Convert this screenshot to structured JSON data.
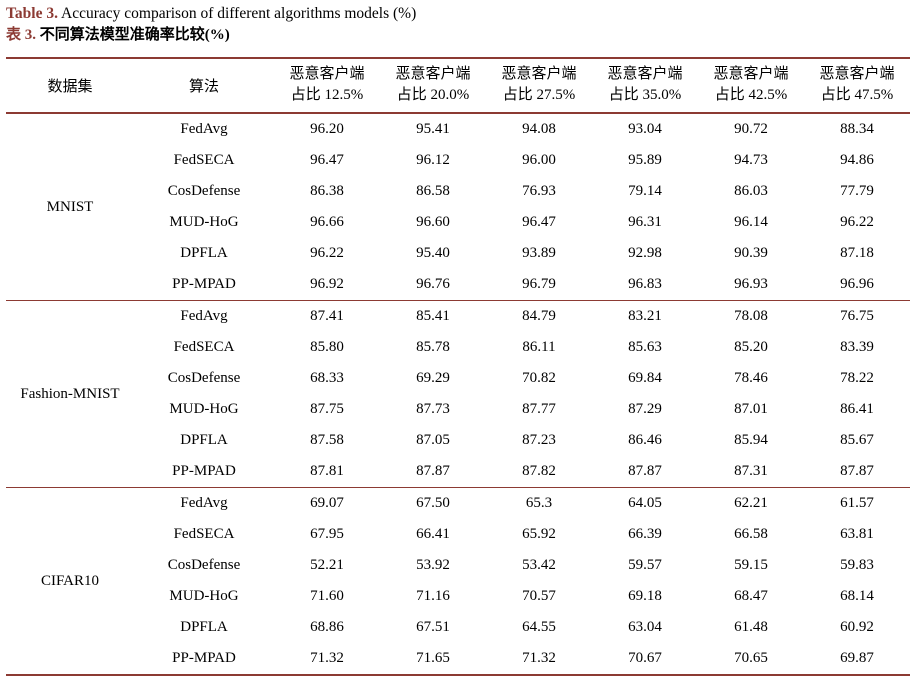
{
  "caption": {
    "label_en": "Table 3.",
    "text_en": " Accuracy comparison of different algorithms models (%)",
    "label_zh": "表 3.",
    "text_zh": " 不同算法模型准确率比较(%)"
  },
  "colors": {
    "accent": "#8c3a33",
    "rule": "#8c3a33",
    "text": "#000000"
  },
  "table": {
    "headers": {
      "dataset": "数据集",
      "algorithm": "算法",
      "ratio_columns": [
        {
          "line1": "恶意客户端",
          "line2": "占比 12.5%"
        },
        {
          "line1": "恶意客户端",
          "line2": "占比 20.0%"
        },
        {
          "line1": "恶意客户端",
          "line2": "占比 27.5%"
        },
        {
          "line1": "恶意客户端",
          "line2": "占比 35.0%"
        },
        {
          "line1": "恶意客户端",
          "line2": "占比 42.5%"
        },
        {
          "line1": "恶意客户端",
          "line2": "占比 47.5%"
        }
      ]
    },
    "groups": [
      {
        "dataset": "MNIST",
        "rows": [
          {
            "algorithm": "FedAvg",
            "values": [
              "96.20",
              "95.41",
              "94.08",
              "93.04",
              "90.72",
              "88.34"
            ]
          },
          {
            "algorithm": "FedSECA",
            "values": [
              "96.47",
              "96.12",
              "96.00",
              "95.89",
              "94.73",
              "94.86"
            ]
          },
          {
            "algorithm": "CosDefense",
            "values": [
              "86.38",
              "86.58",
              "76.93",
              "79.14",
              "86.03",
              "77.79"
            ]
          },
          {
            "algorithm": "MUD-HoG",
            "values": [
              "96.66",
              "96.60",
              "96.47",
              "96.31",
              "96.14",
              "96.22"
            ]
          },
          {
            "algorithm": "DPFLA",
            "values": [
              "96.22",
              "95.40",
              "93.89",
              "92.98",
              "90.39",
              "87.18"
            ]
          },
          {
            "algorithm": "PP-MPAD",
            "values": [
              "96.92",
              "96.76",
              "96.79",
              "96.83",
              "96.93",
              "96.96"
            ]
          }
        ]
      },
      {
        "dataset": "Fashion-MNIST",
        "rows": [
          {
            "algorithm": "FedAvg",
            "values": [
              "87.41",
              "85.41",
              "84.79",
              "83.21",
              "78.08",
              "76.75"
            ]
          },
          {
            "algorithm": "FedSECA",
            "values": [
              "85.80",
              "85.78",
              "86.11",
              "85.63",
              "85.20",
              "83.39"
            ]
          },
          {
            "algorithm": "CosDefense",
            "values": [
              "68.33",
              "69.29",
              "70.82",
              "69.84",
              "78.46",
              "78.22"
            ]
          },
          {
            "algorithm": "MUD-HoG",
            "values": [
              "87.75",
              "87.73",
              "87.77",
              "87.29",
              "87.01",
              "86.41"
            ]
          },
          {
            "algorithm": "DPFLA",
            "values": [
              "87.58",
              "87.05",
              "87.23",
              "86.46",
              "85.94",
              "85.67"
            ]
          },
          {
            "algorithm": "PP-MPAD",
            "values": [
              "87.81",
              "87.87",
              "87.82",
              "87.87",
              "87.31",
              "87.87"
            ]
          }
        ]
      },
      {
        "dataset": "CIFAR10",
        "rows": [
          {
            "algorithm": "FedAvg",
            "values": [
              "69.07",
              "67.50",
              "65.3",
              "64.05",
              "62.21",
              "61.57"
            ]
          },
          {
            "algorithm": "FedSECA",
            "values": [
              "67.95",
              "66.41",
              "65.92",
              "66.39",
              "66.58",
              "63.81"
            ]
          },
          {
            "algorithm": "CosDefense",
            "values": [
              "52.21",
              "53.92",
              "53.42",
              "59.57",
              "59.15",
              "59.83"
            ]
          },
          {
            "algorithm": "MUD-HoG",
            "values": [
              "71.60",
              "71.16",
              "70.57",
              "69.18",
              "68.47",
              "68.14"
            ]
          },
          {
            "algorithm": "DPFLA",
            "values": [
              "68.86",
              "67.51",
              "64.55",
              "63.04",
              "61.48",
              "60.92"
            ]
          },
          {
            "algorithm": "PP-MPAD",
            "values": [
              "71.32",
              "71.65",
              "71.32",
              "70.67",
              "70.65",
              "69.87"
            ]
          }
        ]
      }
    ]
  }
}
